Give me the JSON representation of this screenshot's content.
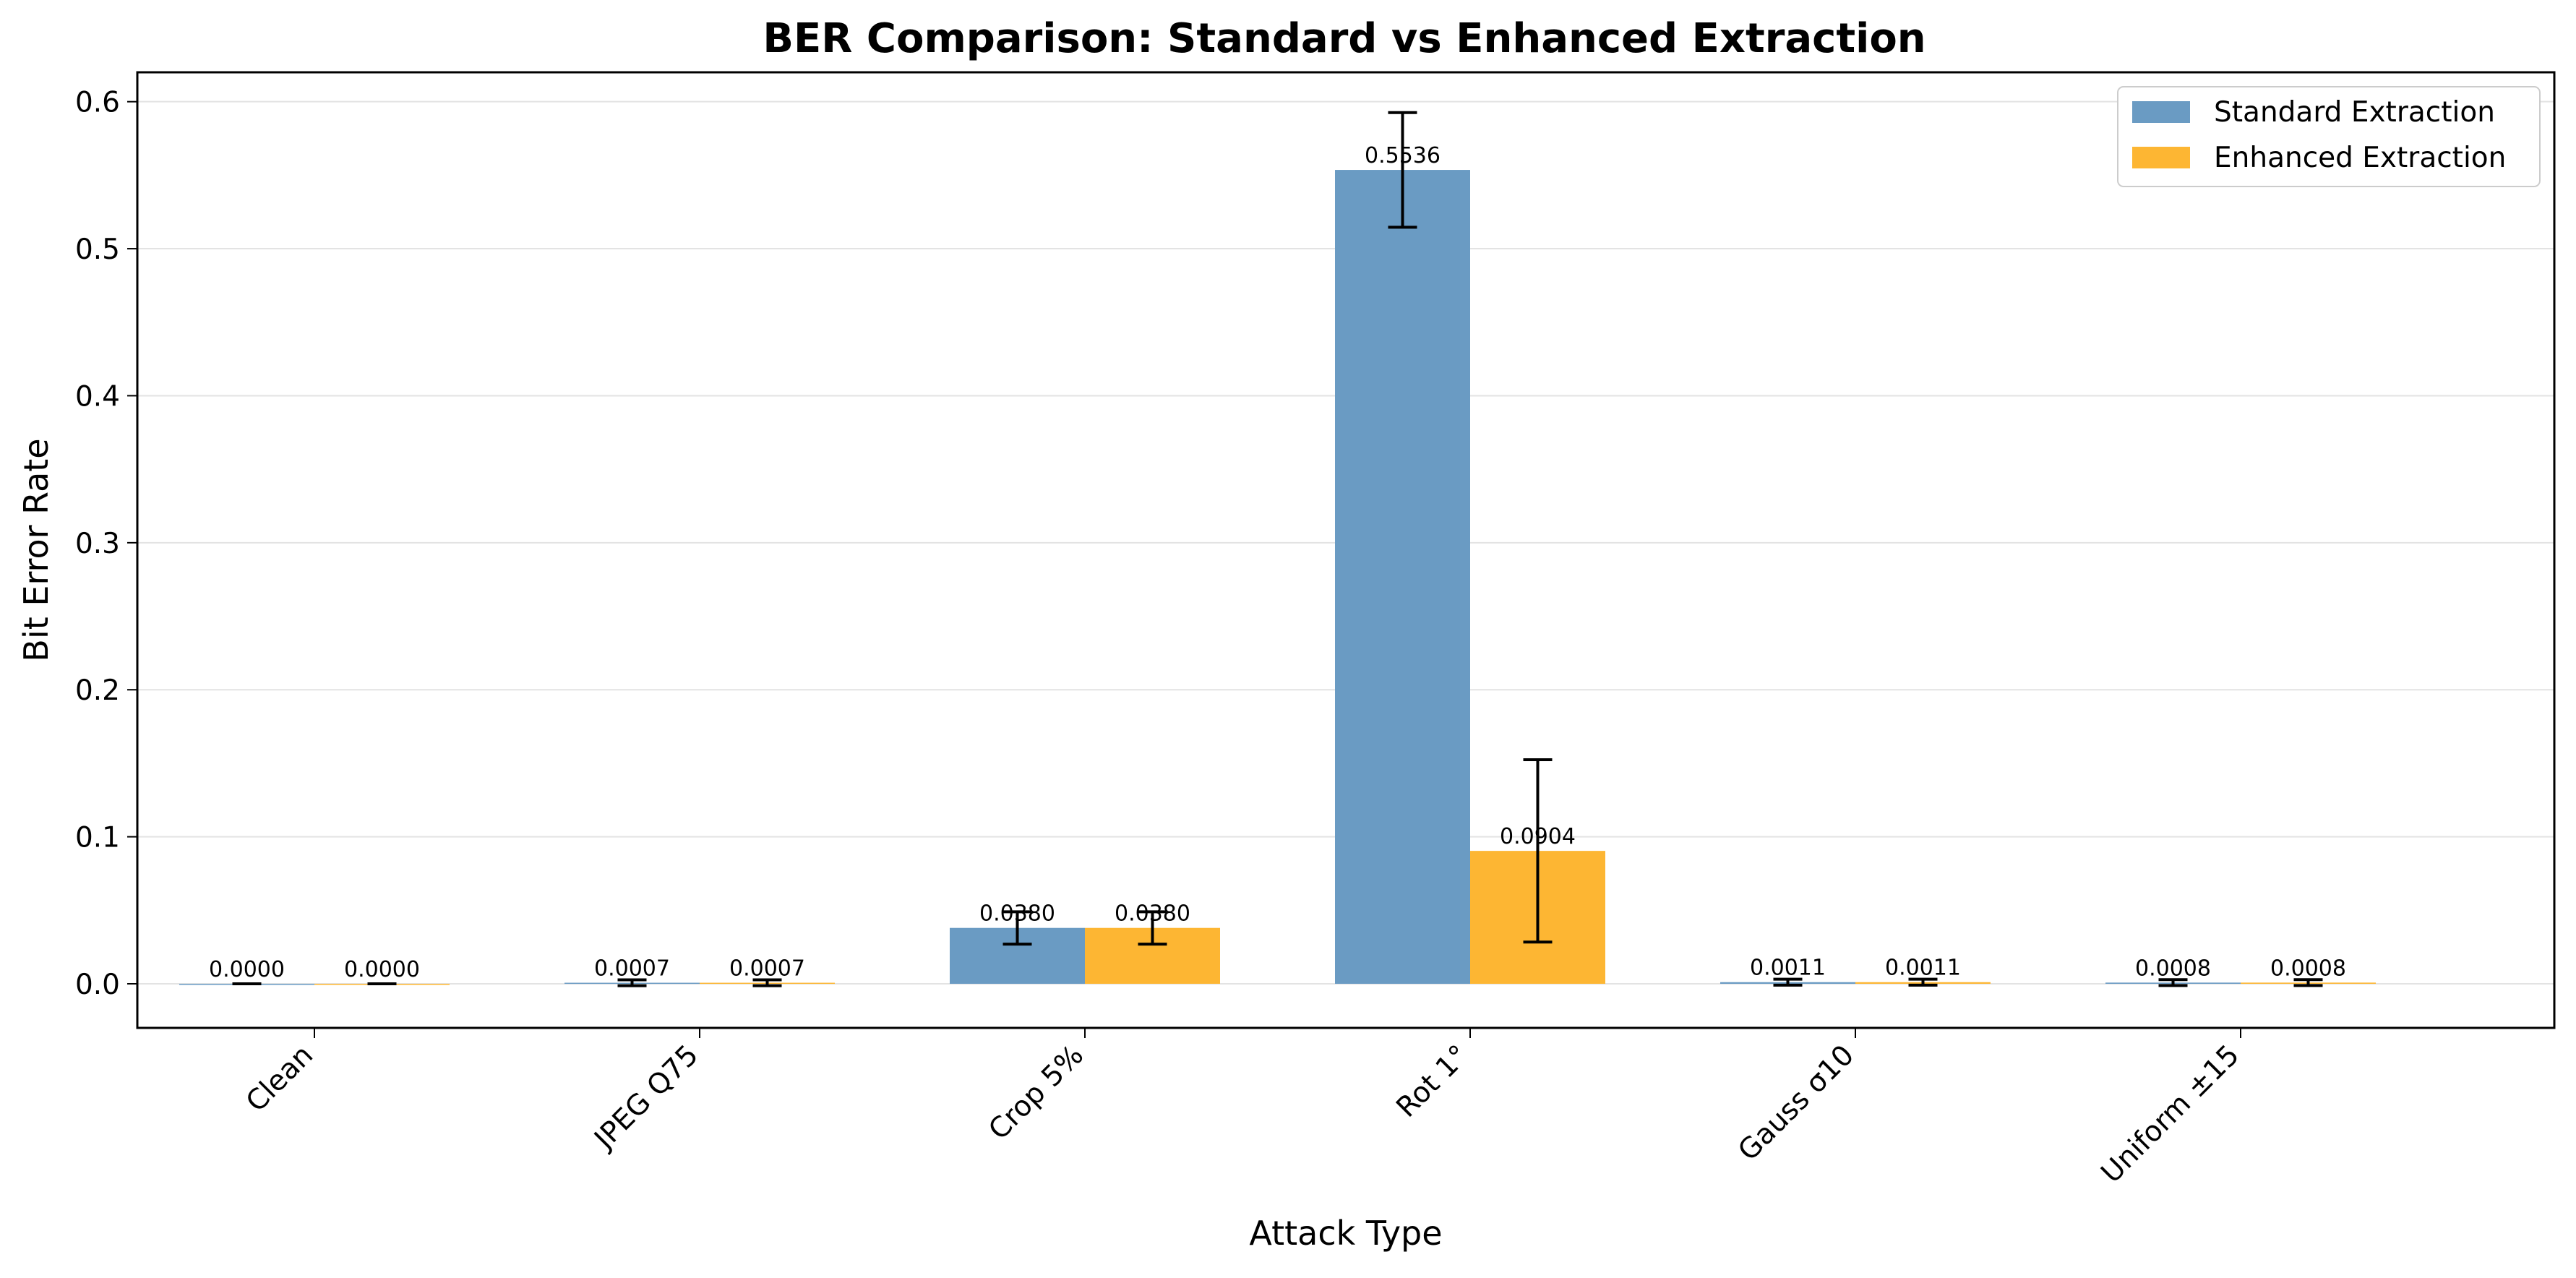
{
  "chart_data": {
    "type": "bar",
    "title": "BER Comparison: Standard vs Enhanced Extraction",
    "xlabel": "Attack Type",
    "ylabel": "Bit Error Rate",
    "ylim": [
      -0.03,
      0.62
    ],
    "yticks": [
      0.0,
      0.1,
      0.2,
      0.3,
      0.4,
      0.5,
      0.6
    ],
    "ytick_labels": [
      "0.0",
      "0.1",
      "0.2",
      "0.3",
      "0.4",
      "0.5",
      "0.6"
    ],
    "grid": "horizontal",
    "legend_position": "top-right",
    "categories": [
      "Clean",
      "JPEG Q75",
      "Crop 5%",
      "Rot 1°",
      "Gauss σ10",
      "Uniform ±15"
    ],
    "series": [
      {
        "name": "Standard Extraction",
        "color": "#6a9bc3",
        "values": [
          0.0,
          0.0007,
          0.038,
          0.5536,
          0.0011,
          0.0008
        ],
        "errors": [
          0.0,
          0.002,
          0.011,
          0.039,
          0.002,
          0.002
        ],
        "labels": [
          "0.0000",
          "0.0007",
          "0.0380",
          "0.5536",
          "0.0011",
          "0.0008"
        ]
      },
      {
        "name": "Enhanced Extraction",
        "color": "#fdb633",
        "values": [
          0.0,
          0.0007,
          0.038,
          0.0904,
          0.0011,
          0.0008
        ],
        "errors": [
          0.0,
          0.002,
          0.011,
          0.062,
          0.002,
          0.002
        ],
        "labels": [
          "0.0000",
          "0.0007",
          "0.0380",
          "0.0904",
          "0.0011",
          "0.0008"
        ]
      }
    ]
  }
}
